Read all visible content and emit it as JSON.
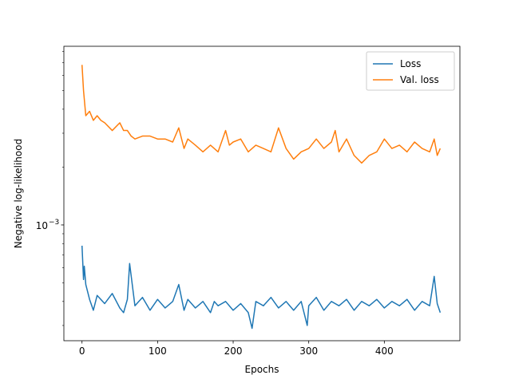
{
  "chart_data": {
    "type": "line",
    "xlabel": "Epochs",
    "ylabel": "Negative log-likelihood",
    "yscale": "log",
    "xlim": [
      -24,
      500
    ],
    "ylim": [
      0.00025,
      0.0085
    ],
    "x_ticks": [
      0,
      100,
      200,
      300,
      400
    ],
    "x_tick_labels": [
      "0",
      "100",
      "200",
      "300",
      "400"
    ],
    "y_ticks": [
      0.001
    ],
    "y_tick_labels": [
      "10"
    ],
    "y_tick_exponent": "−3",
    "grid": false,
    "legend": "top-right",
    "series": [
      {
        "name": "Loss",
        "color": "#1f77b4",
        "x": [
          0,
          2,
          3,
          5,
          10,
          15,
          20,
          30,
          40,
          50,
          55,
          60,
          63,
          70,
          80,
          90,
          100,
          110,
          120,
          128,
          135,
          140,
          150,
          160,
          170,
          175,
          180,
          190,
          200,
          210,
          220,
          225,
          230,
          240,
          250,
          260,
          270,
          280,
          290,
          298,
          300,
          310,
          320,
          330,
          340,
          350,
          360,
          370,
          380,
          390,
          400,
          410,
          420,
          430,
          440,
          450,
          460,
          466,
          470,
          474
        ],
        "values": [
          0.00078,
          0.00052,
          0.00061,
          0.00049,
          0.00041,
          0.00036,
          0.00043,
          0.00039,
          0.00044,
          0.00037,
          0.00035,
          0.00041,
          0.00063,
          0.00038,
          0.00042,
          0.00036,
          0.00041,
          0.00037,
          0.0004,
          0.00049,
          0.00036,
          0.00041,
          0.00037,
          0.0004,
          0.00035,
          0.0004,
          0.00038,
          0.0004,
          0.00036,
          0.00039,
          0.00035,
          0.00029,
          0.0004,
          0.00038,
          0.00042,
          0.00037,
          0.0004,
          0.00036,
          0.0004,
          0.0003,
          0.00038,
          0.00042,
          0.00036,
          0.0004,
          0.00038,
          0.00041,
          0.00036,
          0.0004,
          0.00038,
          0.00041,
          0.00037,
          0.0004,
          0.00038,
          0.00041,
          0.00036,
          0.0004,
          0.00038,
          0.00054,
          0.00039,
          0.00035
        ]
      },
      {
        "name": "Val. loss",
        "color": "#ff7f0e",
        "x": [
          0,
          2,
          5,
          10,
          15,
          20,
          25,
          30,
          40,
          50,
          55,
          60,
          65,
          70,
          80,
          90,
          100,
          110,
          120,
          128,
          135,
          140,
          150,
          160,
          170,
          180,
          190,
          195,
          200,
          210,
          220,
          230,
          240,
          250,
          260,
          270,
          280,
          290,
          300,
          310,
          320,
          330,
          335,
          340,
          350,
          360,
          370,
          380,
          390,
          400,
          410,
          420,
          430,
          440,
          450,
          460,
          466,
          470,
          474
        ],
        "values": [
          0.0068,
          0.005,
          0.0037,
          0.0039,
          0.0035,
          0.0037,
          0.0035,
          0.0034,
          0.0031,
          0.0034,
          0.0031,
          0.0031,
          0.0029,
          0.0028,
          0.0029,
          0.0029,
          0.0028,
          0.0028,
          0.0027,
          0.0032,
          0.0025,
          0.0028,
          0.0026,
          0.0024,
          0.0026,
          0.0024,
          0.0031,
          0.0026,
          0.0027,
          0.0028,
          0.0024,
          0.0026,
          0.0025,
          0.0024,
          0.0032,
          0.0025,
          0.0022,
          0.0024,
          0.0025,
          0.0028,
          0.0025,
          0.0027,
          0.0031,
          0.0024,
          0.0028,
          0.0023,
          0.0021,
          0.0023,
          0.0024,
          0.0028,
          0.0025,
          0.0026,
          0.0024,
          0.0027,
          0.0025,
          0.0024,
          0.0028,
          0.0023,
          0.0025
        ]
      }
    ]
  }
}
